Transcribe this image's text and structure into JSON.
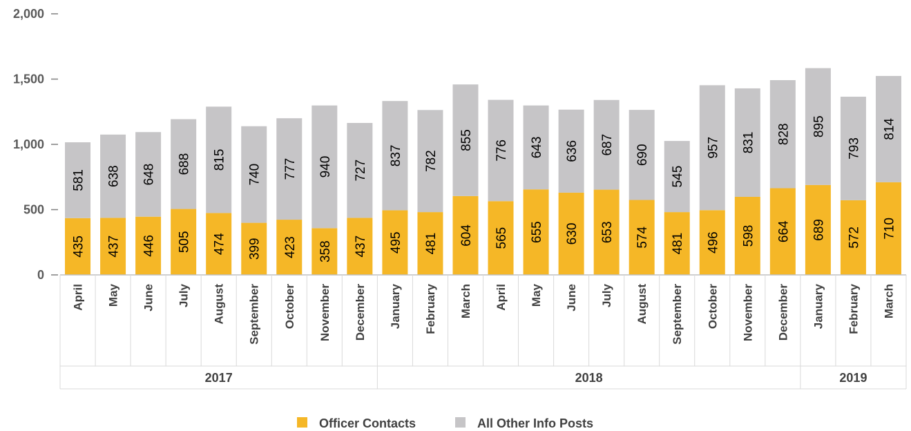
{
  "chart_data": {
    "type": "bar",
    "stacked": true,
    "categories": [
      "April",
      "May",
      "June",
      "July",
      "August",
      "September",
      "October",
      "November",
      "December",
      "January",
      "February",
      "March",
      "April",
      "May",
      "June",
      "July",
      "August",
      "September",
      "October",
      "November",
      "December",
      "January",
      "February",
      "March"
    ],
    "groups": [
      {
        "label": "2017",
        "count": 9
      },
      {
        "label": "2018",
        "count": 12
      },
      {
        "label": "2019",
        "count": 3
      }
    ],
    "series": [
      {
        "name": "Officer Contacts",
        "color": "#f5b727",
        "values": [
          435,
          437,
          446,
          505,
          474,
          399,
          423,
          358,
          437,
          495,
          481,
          604,
          565,
          655,
          630,
          653,
          574,
          481,
          496,
          598,
          664,
          689,
          572,
          710
        ]
      },
      {
        "name": "All Other Info Posts",
        "color": "#c6c5c7",
        "values": [
          581,
          638,
          648,
          688,
          815,
          740,
          777,
          940,
          727,
          837,
          782,
          855,
          776,
          643,
          636,
          687,
          690,
          545,
          957,
          831,
          828,
          895,
          793,
          814
        ]
      }
    ],
    "ylim": [
      0,
      2000
    ],
    "yticks": [
      "0",
      "500",
      "1,000",
      "1,500",
      "2,000"
    ],
    "ytick_values": [
      0,
      500,
      1000,
      1500,
      2000
    ],
    "grid": false,
    "legend_position": "bottom-center"
  }
}
